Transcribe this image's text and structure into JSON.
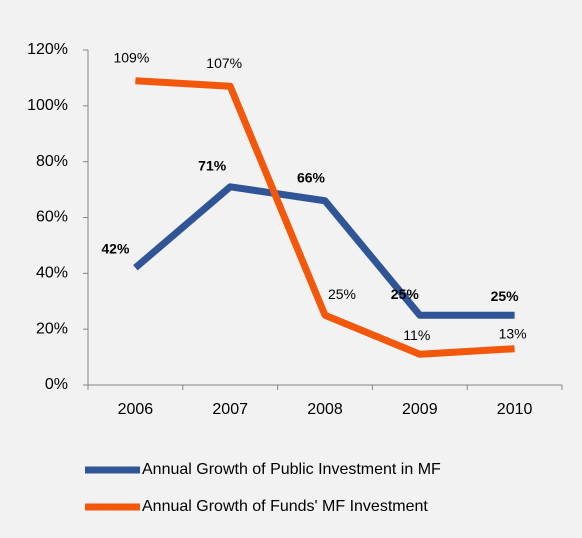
{
  "chart_data": {
    "type": "line",
    "categories": [
      "2006",
      "2007",
      "2008",
      "2009",
      "2010"
    ],
    "series": [
      {
        "name": "Annual Growth of Public Investment in MF",
        "color": "#2f5597",
        "values": [
          42,
          71,
          66,
          25,
          25
        ],
        "value_labels": [
          "42%",
          "71%",
          "66%",
          "25%",
          "25%"
        ],
        "bold_labels": true
      },
      {
        "name": "Annual Growth of Funds' MF Investment",
        "color": "#f2570a",
        "values": [
          109,
          107,
          25,
          11,
          13
        ],
        "value_labels": [
          "109%",
          "107%",
          "25%",
          "11%",
          "13%"
        ],
        "bold_labels": false
      }
    ],
    "ylim": [
      0,
      120
    ],
    "yticks": [
      {
        "value": 0,
        "label": "0%"
      },
      {
        "value": 20,
        "label": "20%"
      },
      {
        "value": 40,
        "label": "40%"
      },
      {
        "value": 60,
        "label": "60%"
      },
      {
        "value": 80,
        "label": "80%"
      },
      {
        "value": 100,
        "label": "100%"
      },
      {
        "value": 120,
        "label": "120%"
      }
    ],
    "legend": "bottom"
  }
}
